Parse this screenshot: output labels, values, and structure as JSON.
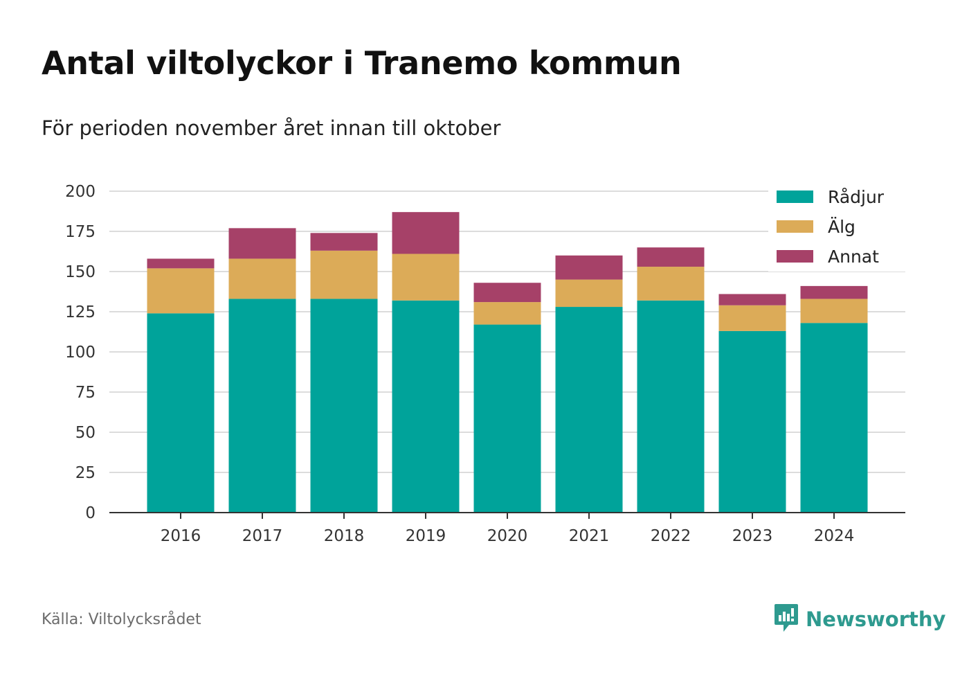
{
  "title": "Antal viltolyckor i Tranemo kommun",
  "subtitle": "För perioden november året innan till oktober",
  "source": "Källa: Viltolycksrådet",
  "brand": {
    "name": "Newsworthy",
    "icon": "newsworthy-chat-bars-icon",
    "color": "#2e9a8f"
  },
  "chart_data": {
    "type": "bar",
    "stacked": true,
    "categories": [
      "2016",
      "2017",
      "2018",
      "2019",
      "2020",
      "2021",
      "2022",
      "2023",
      "2024"
    ],
    "series": [
      {
        "name": "Rådjur",
        "color": "#00a39a",
        "values": [
          124,
          133,
          133,
          132,
          117,
          128,
          132,
          113,
          118
        ]
      },
      {
        "name": "Älg",
        "color": "#dcab58",
        "values": [
          28,
          25,
          30,
          29,
          14,
          17,
          21,
          16,
          15
        ]
      },
      {
        "name": "Annat",
        "color": "#a64168",
        "values": [
          6,
          19,
          11,
          26,
          12,
          15,
          12,
          7,
          8
        ]
      }
    ],
    "ylim": [
      0,
      200
    ],
    "yticks": [
      0,
      25,
      50,
      75,
      100,
      125,
      150,
      175,
      200
    ],
    "grid": true,
    "legend": "top-right"
  }
}
